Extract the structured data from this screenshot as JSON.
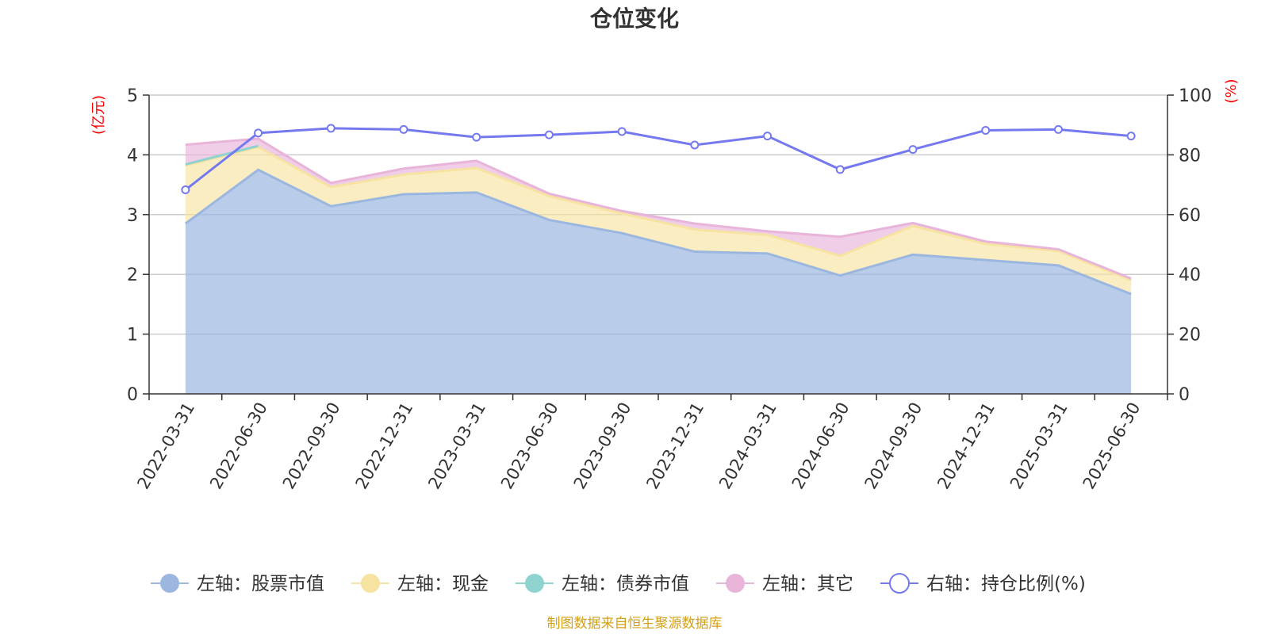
{
  "chart_data": {
    "type": "area",
    "title": "仓位变化",
    "left_unit": "(亿元)",
    "right_unit": "(%)",
    "categories": [
      "2022-03-31",
      "2022-06-30",
      "2022-09-30",
      "2022-12-31",
      "2023-03-31",
      "2023-06-30",
      "2023-09-30",
      "2023-12-31",
      "2024-03-31",
      "2024-06-30",
      "2024-09-30",
      "2024-12-31",
      "2025-03-31",
      "2025-06-30"
    ],
    "left_axis": {
      "min": 0,
      "max": 5,
      "ticks": [
        "0",
        "1",
        "2",
        "3",
        "4",
        "5"
      ]
    },
    "right_axis": {
      "min": 0,
      "max": 100,
      "ticks": [
        "0",
        "20",
        "40",
        "60",
        "80",
        "100"
      ]
    },
    "grid": true,
    "stacked": true,
    "series": [
      {
        "name": "左轴：股票市值",
        "axis": "left",
        "kind": "area",
        "color": "#9bb7e0",
        "values": [
          2.85,
          3.75,
          3.14,
          3.34,
          3.37,
          2.91,
          2.69,
          2.38,
          2.35,
          1.98,
          2.33,
          2.24,
          2.15,
          1.67
        ]
      },
      {
        "name": "左轴：现金",
        "axis": "left",
        "kind": "area",
        "color": "#f7e3a1",
        "values": [
          0.97,
          0.38,
          0.32,
          0.33,
          0.41,
          0.4,
          0.33,
          0.37,
          0.31,
          0.33,
          0.48,
          0.27,
          0.24,
          0.23
        ]
      },
      {
        "name": "左轴：债券市值",
        "axis": "left",
        "kind": "area",
        "color": "#8fd3d0",
        "values": [
          0.02,
          0.02,
          0,
          0,
          0,
          0,
          0,
          0,
          0,
          0,
          0,
          0,
          0,
          0
        ]
      },
      {
        "name": "左轴：其它",
        "axis": "left",
        "kind": "area",
        "color": "#e8b4da",
        "values": [
          0.33,
          0.12,
          0.07,
          0.1,
          0.12,
          0.04,
          0.04,
          0.1,
          0.06,
          0.32,
          0.05,
          0.04,
          0.03,
          0.03
        ]
      },
      {
        "name": "右轴：持仓比例(%)",
        "axis": "right",
        "kind": "line",
        "color": "#7479ef",
        "values": [
          68.3,
          87.3,
          88.9,
          88.5,
          85.9,
          86.7,
          87.8,
          83.3,
          86.3,
          75.1,
          81.8,
          88.2,
          88.5,
          86.3
        ]
      }
    ]
  },
  "source_note": "制图数据来自恒生聚源数据库",
  "colors": {
    "axis": "#333333",
    "grid": "#cccccc",
    "unit_label": "#ff0000",
    "source": "#d4a017"
  }
}
